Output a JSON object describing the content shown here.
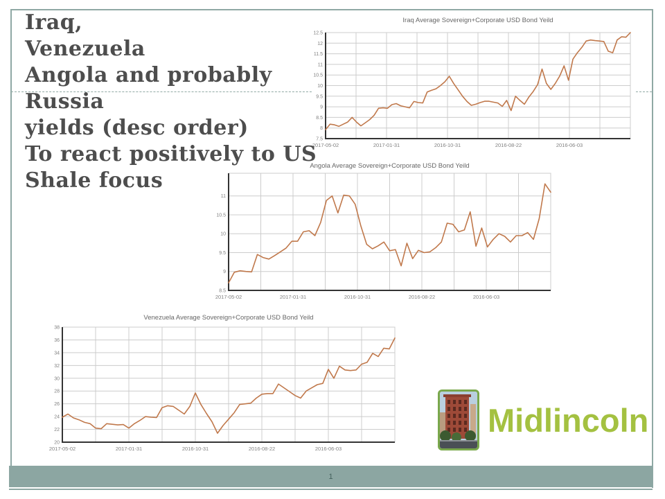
{
  "slide": {
    "title_lines": [
      "Iraq,",
      "Venezuela",
      "Angola and probably",
      "Russia",
      "yields (desc order)",
      "To react positively to US",
      "Shale focus"
    ],
    "page_number": "1"
  },
  "logo": {
    "text": "Midlincoln",
    "icon": "brick-building-photo",
    "text_color": "#a4c141"
  },
  "colors": {
    "line": "#c0784b",
    "grid": "#cccccc",
    "axis": "#333333",
    "tick_text": "#808080",
    "chart_title_text": "#666666",
    "slide_title_text": "#4d4d4d",
    "footer_bar": "#8ca6a2",
    "slide_border": "#8fa8a4"
  },
  "chart_data": [
    {
      "type": "line",
      "title": "Iraq Average Sovereign+Corporate  USD Bond Yeild",
      "x_labels": [
        "2017-05-02",
        "2017-01-31",
        "2016-10-31",
        "2016-08-22",
        "2016-06-03"
      ],
      "ylim": [
        7.5,
        12.5
      ],
      "yticks": [
        7.5,
        8,
        8.5,
        9,
        9.5,
        10,
        10.5,
        11,
        11.5,
        12,
        12.5
      ],
      "grid": true,
      "legend": "none",
      "line_color": "#c0784b",
      "values": [
        7.92,
        8.18,
        8.15,
        8.08,
        8.18,
        8.28,
        8.5,
        8.28,
        8.1,
        8.25,
        8.4,
        8.6,
        8.93,
        8.95,
        8.93,
        9.1,
        9.15,
        9.05,
        9.0,
        8.95,
        9.25,
        9.2,
        9.18,
        9.7,
        9.78,
        9.85,
        10.0,
        10.18,
        10.44,
        10.1,
        9.8,
        9.5,
        9.25,
        9.07,
        9.12,
        9.2,
        9.26,
        9.26,
        9.22,
        9.18,
        9.02,
        9.3,
        8.82,
        9.5,
        9.3,
        9.12,
        9.45,
        9.72,
        10.05,
        10.78,
        10.1,
        9.82,
        10.1,
        10.45,
        10.93,
        10.25,
        11.25,
        11.55,
        11.8,
        12.1,
        12.15,
        12.12,
        12.1,
        12.08,
        11.62,
        11.55,
        12.15,
        12.3,
        12.28,
        12.5
      ]
    },
    {
      "type": "line",
      "title": "Angola Average Sovereign+Corporate  USD Bond Yeild",
      "x_labels": [
        "2017-05-02",
        "2017-01-31",
        "2016-10-31",
        "2016-08-22",
        "2016-06-03"
      ],
      "ylim": [
        8.5,
        11.6
      ],
      "yticks": [
        8.5,
        9,
        9.5,
        10,
        10.5,
        11
      ],
      "grid": true,
      "legend": "none",
      "line_color": "#c0784b",
      "values": [
        8.7,
        8.98,
        9.02,
        9.0,
        8.99,
        9.45,
        9.37,
        9.33,
        9.42,
        9.52,
        9.62,
        9.8,
        9.8,
        10.05,
        10.08,
        9.95,
        10.3,
        10.88,
        11.0,
        10.55,
        11.02,
        11.0,
        10.78,
        10.2,
        9.72,
        9.6,
        9.68,
        9.78,
        9.55,
        9.58,
        9.15,
        9.75,
        9.34,
        9.56,
        9.5,
        9.52,
        9.63,
        9.78,
        10.28,
        10.25,
        10.05,
        10.1,
        10.58,
        9.67,
        10.15,
        9.65,
        9.85,
        10.0,
        9.93,
        9.78,
        9.95,
        9.95,
        10.03,
        9.85,
        10.4,
        11.32,
        11.1
      ]
    },
    {
      "type": "line",
      "title": "Venezuela Average Sovereign+Corporate  USD Bond Yeild",
      "x_labels": [
        "2017-05-02",
        "2017-01-31",
        "2016-10-31",
        "2016-08-22",
        "2016-06-03"
      ],
      "ylim": [
        20,
        38
      ],
      "yticks": [
        20,
        22,
        24,
        26,
        28,
        30,
        32,
        34,
        36,
        38
      ],
      "grid": true,
      "legend": "none",
      "line_color": "#c0784b",
      "values": [
        23.9,
        24.4,
        23.8,
        23.5,
        23.1,
        22.9,
        22.2,
        22.1,
        22.9,
        22.8,
        22.7,
        22.75,
        22.2,
        22.9,
        23.4,
        24.0,
        23.9,
        23.85,
        25.4,
        25.7,
        25.6,
        25.0,
        24.4,
        25.6,
        27.7,
        25.9,
        24.5,
        23.2,
        21.4,
        22.6,
        23.6,
        24.6,
        25.9,
        26.0,
        26.1,
        26.9,
        27.5,
        27.6,
        27.6,
        29.1,
        28.5,
        27.9,
        27.3,
        26.9,
        28.0,
        28.5,
        29.0,
        29.2,
        31.4,
        30.0,
        31.9,
        31.3,
        31.2,
        31.3,
        32.2,
        32.5,
        33.9,
        33.4,
        34.7,
        34.6,
        36.3
      ]
    }
  ]
}
